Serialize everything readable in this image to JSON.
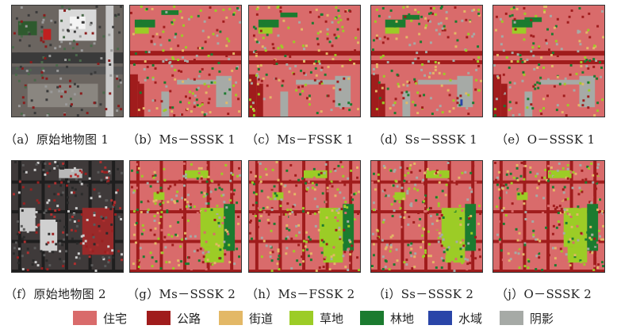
{
  "captions": [
    "（a）原始地物图 1",
    "（b）Ms－SSSK 1",
    "（c）Ms－FSSK 1",
    "（d）Ss－SSSK 1",
    "（e）O－SSSK 1",
    "（f）原始地物图 2",
    "（g）Ms－SSSK 2",
    "（h）Ms－FSSK 2",
    "（i）Ss－SSSK 2",
    "（j）O－SSSK 2"
  ],
  "legend": [
    {
      "label": "住宅",
      "color": "#d96b6b"
    },
    {
      "label": "公路",
      "color": "#a01c1c"
    },
    {
      "label": "街道",
      "color": "#e3b866"
    },
    {
      "label": "草地",
      "color": "#9ccc26"
    },
    {
      "label": "林地",
      "color": "#1b7b2f"
    },
    {
      "label": "水域",
      "color": "#2a45a8"
    },
    {
      "label": "阴影",
      "color": "#a6aaa6"
    }
  ]
}
